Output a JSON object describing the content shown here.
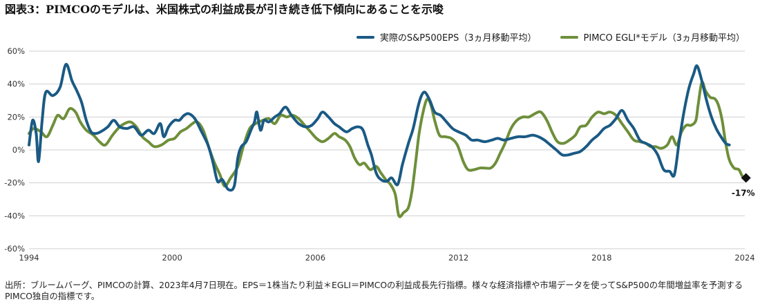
{
  "title": "図表3：PIMCOのモデルは、米国株式の利益成長が引き続き低下傾向にあることを示唆",
  "source": "出所：ブルームバーグ、PIMCOの計算、2023年4月7日現在。EPS＝1株当たり利益＊EGLI＝PIMCOの利益成長先行指標。様々な経済指標や市場データを使ってS&P500の年間増益率を予測するPIMCO独自の指標です。",
  "colors": {
    "eps": "#1a5a84",
    "egli": "#6e8f3a",
    "grid": "#cfcfcf",
    "marker": "#111111"
  },
  "chart_data": {
    "type": "line",
    "title": "図表3：PIMCOのモデルは、米国株式の利益成長が引き続き低下傾向にあることを示唆",
    "xlabel": "",
    "ylabel": "",
    "xlim": [
      1994,
      2024
    ],
    "ylim": [
      -60,
      60
    ],
    "grid": true,
    "legend_position": "top-right",
    "x_ticks": [
      1994,
      2000,
      2006,
      2012,
      2018,
      2024
    ],
    "x_tick_labels": [
      "1994",
      "2000",
      "2006",
      "2012",
      "2018",
      "2024"
    ],
    "y_ticks": [
      -60,
      -40,
      -20,
      0,
      20,
      40,
      60
    ],
    "y_tick_labels": [
      "-60%",
      "-40%",
      "-20%",
      "0%",
      "20%",
      "40%",
      "60%"
    ],
    "series": [
      {
        "name": "実際のS&P500EPS（3ヵ月移動平均）",
        "color": "#1a5a84",
        "points": [
          [
            1994.0,
            3
          ],
          [
            1994.15,
            18
          ],
          [
            1994.3,
            10
          ],
          [
            1994.4,
            -7
          ],
          [
            1994.55,
            18
          ],
          [
            1994.7,
            35
          ],
          [
            1995.0,
            33
          ],
          [
            1995.3,
            38
          ],
          [
            1995.55,
            52
          ],
          [
            1995.8,
            42
          ],
          [
            1996.0,
            36
          ],
          [
            1996.2,
            29
          ],
          [
            1996.4,
            18
          ],
          [
            1996.6,
            11
          ],
          [
            1996.8,
            10
          ],
          [
            1997.0,
            11
          ],
          [
            1997.3,
            14
          ],
          [
            1997.55,
            18
          ],
          [
            1997.8,
            14
          ],
          [
            1998.1,
            13
          ],
          [
            1998.4,
            14
          ],
          [
            1998.7,
            9
          ],
          [
            1999.0,
            12
          ],
          [
            1999.25,
            10
          ],
          [
            1999.5,
            16
          ],
          [
            1999.65,
            8
          ],
          [
            1999.85,
            14
          ],
          [
            2000.1,
            18
          ],
          [
            2000.3,
            18
          ],
          [
            2000.5,
            21
          ],
          [
            2000.7,
            22
          ],
          [
            2000.95,
            19
          ],
          [
            2001.2,
            12
          ],
          [
            2001.5,
            3
          ],
          [
            2001.7,
            -7
          ],
          [
            2001.9,
            -19
          ],
          [
            2002.1,
            -18
          ],
          [
            2002.35,
            -24
          ],
          [
            2002.6,
            -22
          ],
          [
            2002.75,
            -5
          ],
          [
            2002.9,
            2
          ],
          [
            2003.1,
            5
          ],
          [
            2003.3,
            12
          ],
          [
            2003.45,
            17
          ],
          [
            2003.55,
            23
          ],
          [
            2003.7,
            12
          ],
          [
            2003.85,
            18
          ],
          [
            2004.05,
            17
          ],
          [
            2004.3,
            20
          ],
          [
            2004.5,
            22
          ],
          [
            2004.75,
            26
          ],
          [
            2005.0,
            21
          ],
          [
            2005.3,
            16
          ],
          [
            2005.6,
            14
          ],
          [
            2005.85,
            15
          ],
          [
            2006.1,
            19
          ],
          [
            2006.3,
            23
          ],
          [
            2006.55,
            20
          ],
          [
            2006.8,
            16
          ],
          [
            2007.0,
            14
          ],
          [
            2007.3,
            11
          ],
          [
            2007.55,
            13
          ],
          [
            2007.8,
            14
          ],
          [
            2008.0,
            12
          ],
          [
            2008.2,
            3
          ],
          [
            2008.35,
            -3
          ],
          [
            2008.55,
            -14
          ],
          [
            2008.75,
            -18
          ],
          [
            2009.0,
            -19
          ],
          [
            2009.2,
            -17
          ],
          [
            2009.45,
            -21
          ],
          [
            2009.65,
            -9
          ],
          [
            2009.9,
            4
          ],
          [
            2010.1,
            13
          ],
          [
            2010.3,
            26
          ],
          [
            2010.45,
            33
          ],
          [
            2010.6,
            35
          ],
          [
            2010.8,
            30
          ],
          [
            2011.0,
            23
          ],
          [
            2011.25,
            21
          ],
          [
            2011.5,
            17
          ],
          [
            2011.75,
            13
          ],
          [
            2012.0,
            11
          ],
          [
            2012.3,
            9
          ],
          [
            2012.55,
            6
          ],
          [
            2012.8,
            6
          ],
          [
            2013.1,
            5
          ],
          [
            2013.4,
            6
          ],
          [
            2013.65,
            7
          ],
          [
            2013.9,
            6
          ],
          [
            2014.2,
            7
          ],
          [
            2014.5,
            8
          ],
          [
            2014.8,
            8
          ],
          [
            2015.1,
            9
          ],
          [
            2015.35,
            8
          ],
          [
            2015.6,
            6
          ],
          [
            2015.85,
            3
          ],
          [
            2016.1,
            0
          ],
          [
            2016.35,
            -3
          ],
          [
            2016.6,
            -3
          ],
          [
            2016.85,
            -2
          ],
          [
            2017.1,
            -1
          ],
          [
            2017.35,
            2
          ],
          [
            2017.6,
            6
          ],
          [
            2017.85,
            9
          ],
          [
            2018.1,
            13
          ],
          [
            2018.35,
            15
          ],
          [
            2018.6,
            19
          ],
          [
            2018.85,
            24
          ],
          [
            2019.1,
            18
          ],
          [
            2019.35,
            13
          ],
          [
            2019.6,
            6
          ],
          [
            2019.85,
            4
          ],
          [
            2020.1,
            2
          ],
          [
            2020.35,
            -3
          ],
          [
            2020.6,
            -12
          ],
          [
            2020.85,
            -13
          ],
          [
            2021.05,
            -15
          ],
          [
            2021.25,
            5
          ],
          [
            2021.45,
            23
          ],
          [
            2021.65,
            37
          ],
          [
            2021.85,
            46
          ],
          [
            2022.0,
            51
          ],
          [
            2022.2,
            42
          ],
          [
            2022.4,
            30
          ],
          [
            2022.6,
            20
          ],
          [
            2022.8,
            13
          ],
          [
            2023.0,
            8
          ],
          [
            2023.2,
            4
          ],
          [
            2023.35,
            3
          ]
        ]
      },
      {
        "name": "PIMCO EGLI*モデル（3ヵ月移動平均）",
        "color": "#6e8f3a",
        "points": [
          [
            1994.0,
            10
          ],
          [
            1994.2,
            13
          ],
          [
            1994.5,
            11
          ],
          [
            1994.75,
            8
          ],
          [
            1995.0,
            15
          ],
          [
            1995.2,
            21
          ],
          [
            1995.45,
            19
          ],
          [
            1995.7,
            25
          ],
          [
            1995.95,
            23
          ],
          [
            1996.15,
            17
          ],
          [
            1996.4,
            12
          ],
          [
            1996.7,
            9
          ],
          [
            1996.95,
            5
          ],
          [
            1997.2,
            3
          ],
          [
            1997.5,
            9
          ],
          [
            1997.8,
            14
          ],
          [
            1998.0,
            16
          ],
          [
            1998.25,
            17
          ],
          [
            1998.5,
            14
          ],
          [
            1998.75,
            8
          ],
          [
            1999.0,
            5
          ],
          [
            1999.25,
            2
          ],
          [
            1999.55,
            3
          ],
          [
            1999.85,
            6
          ],
          [
            2000.1,
            7
          ],
          [
            2000.35,
            11
          ],
          [
            2000.6,
            13
          ],
          [
            2000.85,
            16
          ],
          [
            2001.05,
            17
          ],
          [
            2001.3,
            12
          ],
          [
            2001.55,
            1
          ],
          [
            2001.75,
            -7
          ],
          [
            2002.0,
            -15
          ],
          [
            2002.2,
            -22
          ],
          [
            2002.45,
            -17
          ],
          [
            2002.75,
            -10
          ],
          [
            2003.0,
            3
          ],
          [
            2003.25,
            13
          ],
          [
            2003.5,
            16
          ],
          [
            2003.8,
            18
          ],
          [
            2004.05,
            19
          ],
          [
            2004.3,
            16
          ],
          [
            2004.55,
            21
          ],
          [
            2004.8,
            20
          ],
          [
            2005.05,
            21
          ],
          [
            2005.3,
            19
          ],
          [
            2005.55,
            15
          ],
          [
            2005.8,
            11
          ],
          [
            2006.05,
            7
          ],
          [
            2006.3,
            5
          ],
          [
            2006.55,
            7
          ],
          [
            2006.8,
            10
          ],
          [
            2007.0,
            8
          ],
          [
            2007.25,
            6
          ],
          [
            2007.45,
            2
          ],
          [
            2007.65,
            -5
          ],
          [
            2007.85,
            -9
          ],
          [
            2008.05,
            -8
          ],
          [
            2008.3,
            -12
          ],
          [
            2008.55,
            -10
          ],
          [
            2008.75,
            -14
          ],
          [
            2008.95,
            -18
          ],
          [
            2009.15,
            -21
          ],
          [
            2009.35,
            -27
          ],
          [
            2009.5,
            -40
          ],
          [
            2009.7,
            -38
          ],
          [
            2009.9,
            -35
          ],
          [
            2010.05,
            -25
          ],
          [
            2010.2,
            -8
          ],
          [
            2010.35,
            10
          ],
          [
            2010.55,
            25
          ],
          [
            2010.7,
            31
          ],
          [
            2010.85,
            27
          ],
          [
            2011.0,
            18
          ],
          [
            2011.2,
            9
          ],
          [
            2011.45,
            8
          ],
          [
            2011.7,
            7
          ],
          [
            2011.95,
            3
          ],
          [
            2012.2,
            -7
          ],
          [
            2012.4,
            -12
          ],
          [
            2012.65,
            -12
          ],
          [
            2012.9,
            -11
          ],
          [
            2013.1,
            -11
          ],
          [
            2013.35,
            -11
          ],
          [
            2013.55,
            -8
          ],
          [
            2013.75,
            -2
          ],
          [
            2013.95,
            4
          ],
          [
            2014.2,
            13
          ],
          [
            2014.45,
            18
          ],
          [
            2014.7,
            20
          ],
          [
            2014.95,
            20
          ],
          [
            2015.2,
            22
          ],
          [
            2015.45,
            23
          ],
          [
            2015.7,
            18
          ],
          [
            2015.95,
            10
          ],
          [
            2016.15,
            5
          ],
          [
            2016.4,
            4
          ],
          [
            2016.65,
            6
          ],
          [
            2016.9,
            9
          ],
          [
            2017.1,
            14
          ],
          [
            2017.35,
            15
          ],
          [
            2017.6,
            20
          ],
          [
            2017.85,
            23
          ],
          [
            2018.1,
            22
          ],
          [
            2018.35,
            23
          ],
          [
            2018.6,
            21
          ],
          [
            2018.85,
            16
          ],
          [
            2019.1,
            11
          ],
          [
            2019.35,
            6
          ],
          [
            2019.6,
            5
          ],
          [
            2019.85,
            4
          ],
          [
            2020.05,
            2
          ],
          [
            2020.25,
            2
          ],
          [
            2020.5,
            1
          ],
          [
            2020.75,
            3
          ],
          [
            2020.95,
            8
          ],
          [
            2021.15,
            3
          ],
          [
            2021.35,
            11
          ],
          [
            2021.55,
            15
          ],
          [
            2021.75,
            15
          ],
          [
            2021.95,
            18
          ],
          [
            2022.05,
            28
          ],
          [
            2022.2,
            41
          ],
          [
            2022.35,
            36
          ],
          [
            2022.55,
            32
          ],
          [
            2022.75,
            31
          ],
          [
            2022.9,
            27
          ],
          [
            2023.05,
            18
          ],
          [
            2023.2,
            4
          ],
          [
            2023.35,
            -6
          ],
          [
            2023.55,
            -11
          ],
          [
            2023.75,
            -12
          ],
          [
            2023.9,
            -16
          ],
          [
            2024.05,
            -17
          ]
        ]
      }
    ],
    "annotations": [
      {
        "x": 2024.05,
        "y": -17,
        "label": "-17%",
        "marker": "diamond"
      }
    ]
  }
}
